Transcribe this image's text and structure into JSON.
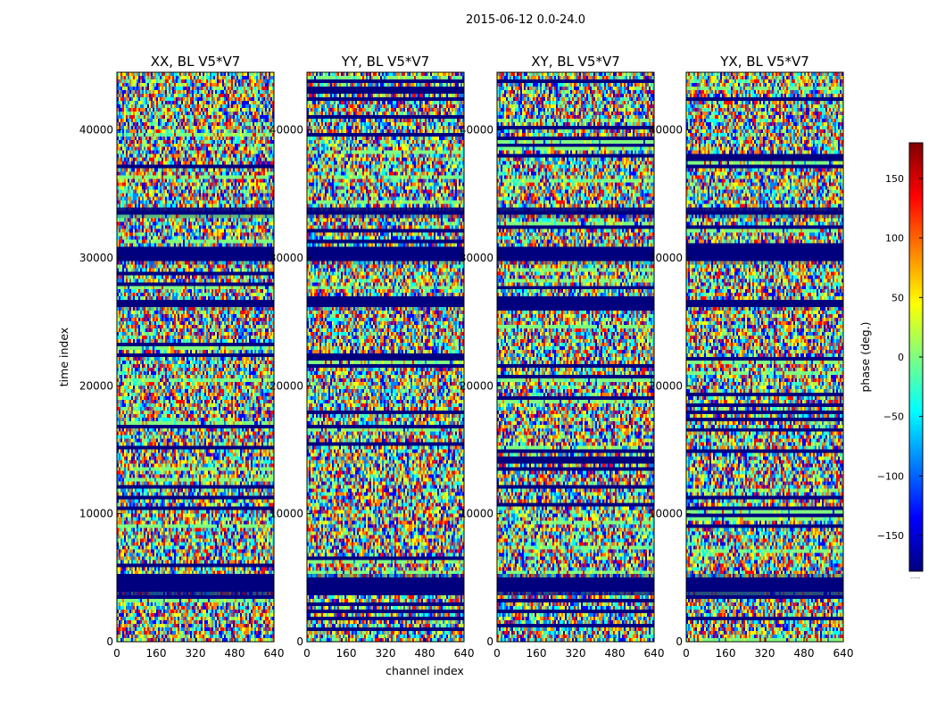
{
  "figure": {
    "suptitle": "2015-06-12 0.0-24.0",
    "xlabel": "channel index",
    "ylabel": "time index",
    "colorbar_label": "phase (deg.)",
    "colorbar_overflow_text": "......"
  },
  "chart_data": {
    "type": "heatmap",
    "colormap": "jet",
    "colormap_stops": [
      "#00007f",
      "#0000ff",
      "#007fff",
      "#00ffff",
      "#7fff7f",
      "#ffff00",
      "#ff7f00",
      "#ff0000",
      "#7f0000"
    ],
    "color_scale": {
      "label": "phase (deg.)",
      "range": [
        -180,
        180
      ],
      "ticks": [
        -150,
        -100,
        -50,
        0,
        50,
        100,
        150
      ]
    },
    "x_range": [
      0,
      640
    ],
    "y_range": [
      0,
      44500
    ],
    "xticks": [
      0,
      160,
      320,
      480,
      640
    ],
    "yticks": [
      0,
      10000,
      20000,
      30000,
      40000
    ],
    "xlabel": "channel index",
    "ylabel": "time index",
    "panels": [
      {
        "title": "XX, BL V5*V7"
      },
      {
        "title": "YY, BL V5*V7"
      },
      {
        "title": "XY, BL V5*V7"
      },
      {
        "title": "YX, BL V5*V7"
      }
    ],
    "flagged_time_ranges_phase_minus180": [
      [
        3700,
        5100
      ],
      [
        29700,
        30900
      ],
      [
        33300,
        33900
      ],
      [
        26100,
        26700
      ]
    ],
    "flagged_color": "#00007f"
  }
}
